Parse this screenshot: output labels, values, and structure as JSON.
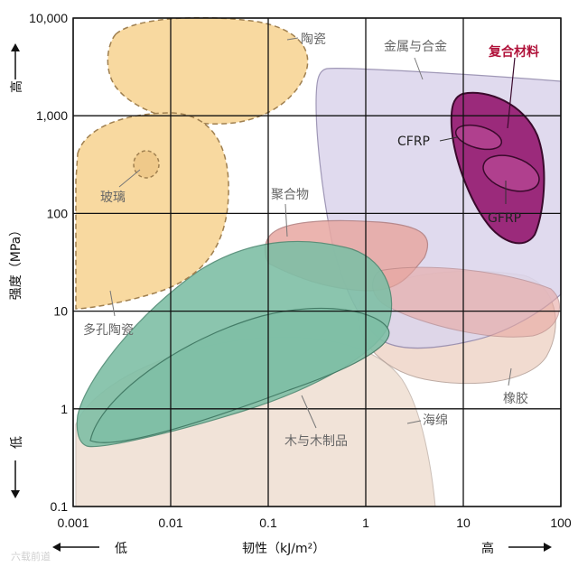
{
  "chart_data": {
    "type": "area",
    "xlabel": "韧性（kJ/m²）",
    "ylabel": "强度（MPa）",
    "x_scale": "log",
    "y_scale": "log",
    "xlim": [
      0.001,
      100
    ],
    "ylim": [
      0.1,
      10000
    ],
    "grid": true,
    "x_ticks": [
      "0.001",
      "0.01",
      "0.1",
      "1",
      "10",
      "100"
    ],
    "y_ticks": [
      "0.1",
      "1",
      "10",
      "100",
      "1,000",
      "10,000"
    ],
    "x_low_label": "低",
    "x_high_label": "高",
    "y_low_label": "低",
    "y_high_label": "高",
    "regions": [
      {
        "name": "陶瓷",
        "color": "#f8d9a0",
        "outline": "dashed"
      },
      {
        "name": "玻璃",
        "color": "#f8d9a0",
        "outline": "dashed"
      },
      {
        "name": "多孔陶瓷",
        "color": "#f8d9a0",
        "outline": "dashed"
      },
      {
        "name": "金属与合金",
        "color": "#dcd6ec",
        "outline": "solid"
      },
      {
        "name": "复合材料",
        "color": "#9b2a7b",
        "outline": "solid"
      },
      {
        "name": "CFRP",
        "color": "#b0408e",
        "outline": "solid"
      },
      {
        "name": "GFRP",
        "color": "#b0408e",
        "outline": "solid"
      },
      {
        "name": "聚合物",
        "color": "#e8a8a2",
        "outline": "solid"
      },
      {
        "name": "橡胶",
        "color": "#f0d8cc",
        "outline": "solid"
      },
      {
        "name": "木与木制品",
        "color": "#7fbfa6",
        "outline": "solid"
      },
      {
        "name": "海绵",
        "color": "#f1e2d6",
        "outline": "solid"
      }
    ]
  },
  "watermark": "六载前道"
}
